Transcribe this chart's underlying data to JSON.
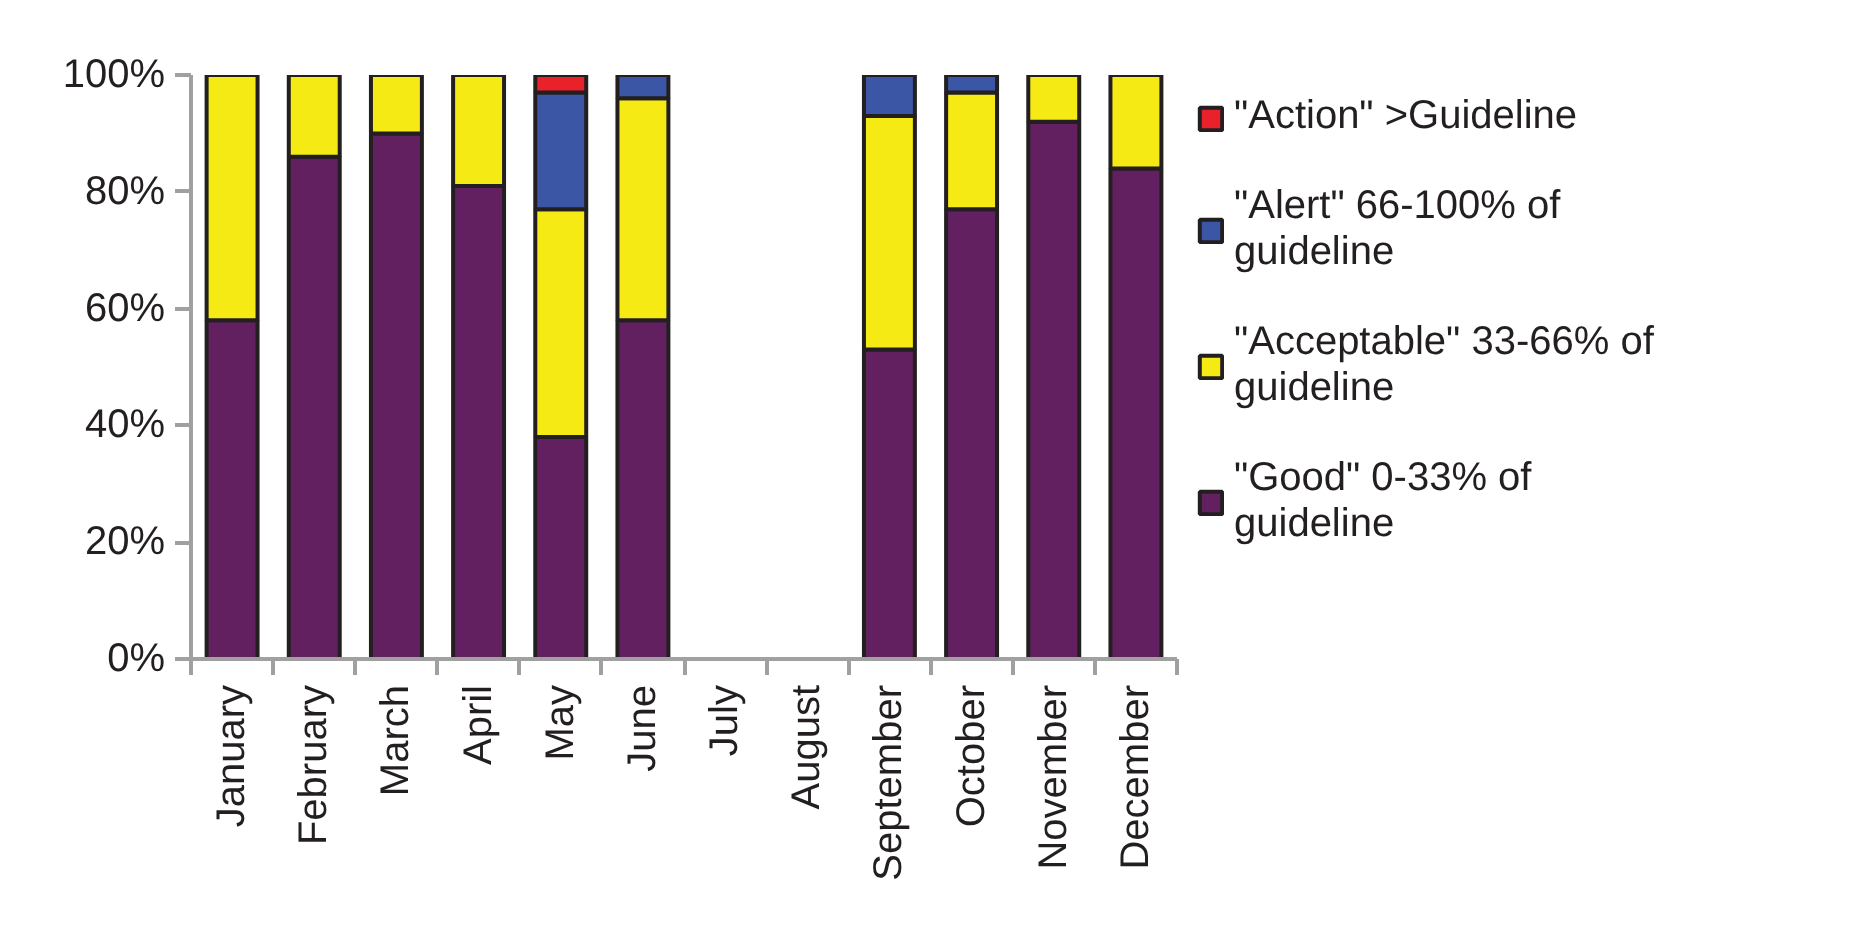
{
  "chart_data": {
    "type": "bar",
    "stacked": true,
    "categories": [
      "January",
      "February",
      "March",
      "April",
      "May",
      "June",
      "July",
      "August",
      "September",
      "October",
      "November",
      "December"
    ],
    "series": [
      {
        "name": "\"Good\" 0-33% of guideline",
        "color": "#622060",
        "values": [
          58,
          86,
          90,
          81,
          38,
          58,
          null,
          null,
          53,
          77,
          92,
          84
        ]
      },
      {
        "name": "\"Acceptable\" 33-66% of guideline",
        "color": "#f5ea14",
        "values": [
          42,
          14,
          10,
          19,
          39,
          38,
          null,
          null,
          40,
          20,
          8,
          16
        ]
      },
      {
        "name": "\"Alert\" 66-100% of guideline",
        "color": "#3a56a5",
        "values": [
          0,
          0,
          0,
          0,
          20,
          4,
          null,
          null,
          7,
          3,
          0,
          0
        ]
      },
      {
        "name": "\"Action\" >Guideline",
        "color": "#e8212a",
        "values": [
          0,
          0,
          0,
          0,
          3,
          0,
          null,
          null,
          0,
          0,
          0,
          0
        ]
      }
    ],
    "ylim": [
      0,
      100
    ],
    "yticks": [
      {
        "value": 0,
        "label": "0%"
      },
      {
        "value": 20,
        "label": "20%"
      },
      {
        "value": 40,
        "label": "40%"
      },
      {
        "value": 60,
        "label": "60%"
      },
      {
        "value": 80,
        "label": "80%"
      },
      {
        "value": 100,
        "label": "100%"
      }
    ],
    "grid": false,
    "legend": "right"
  }
}
